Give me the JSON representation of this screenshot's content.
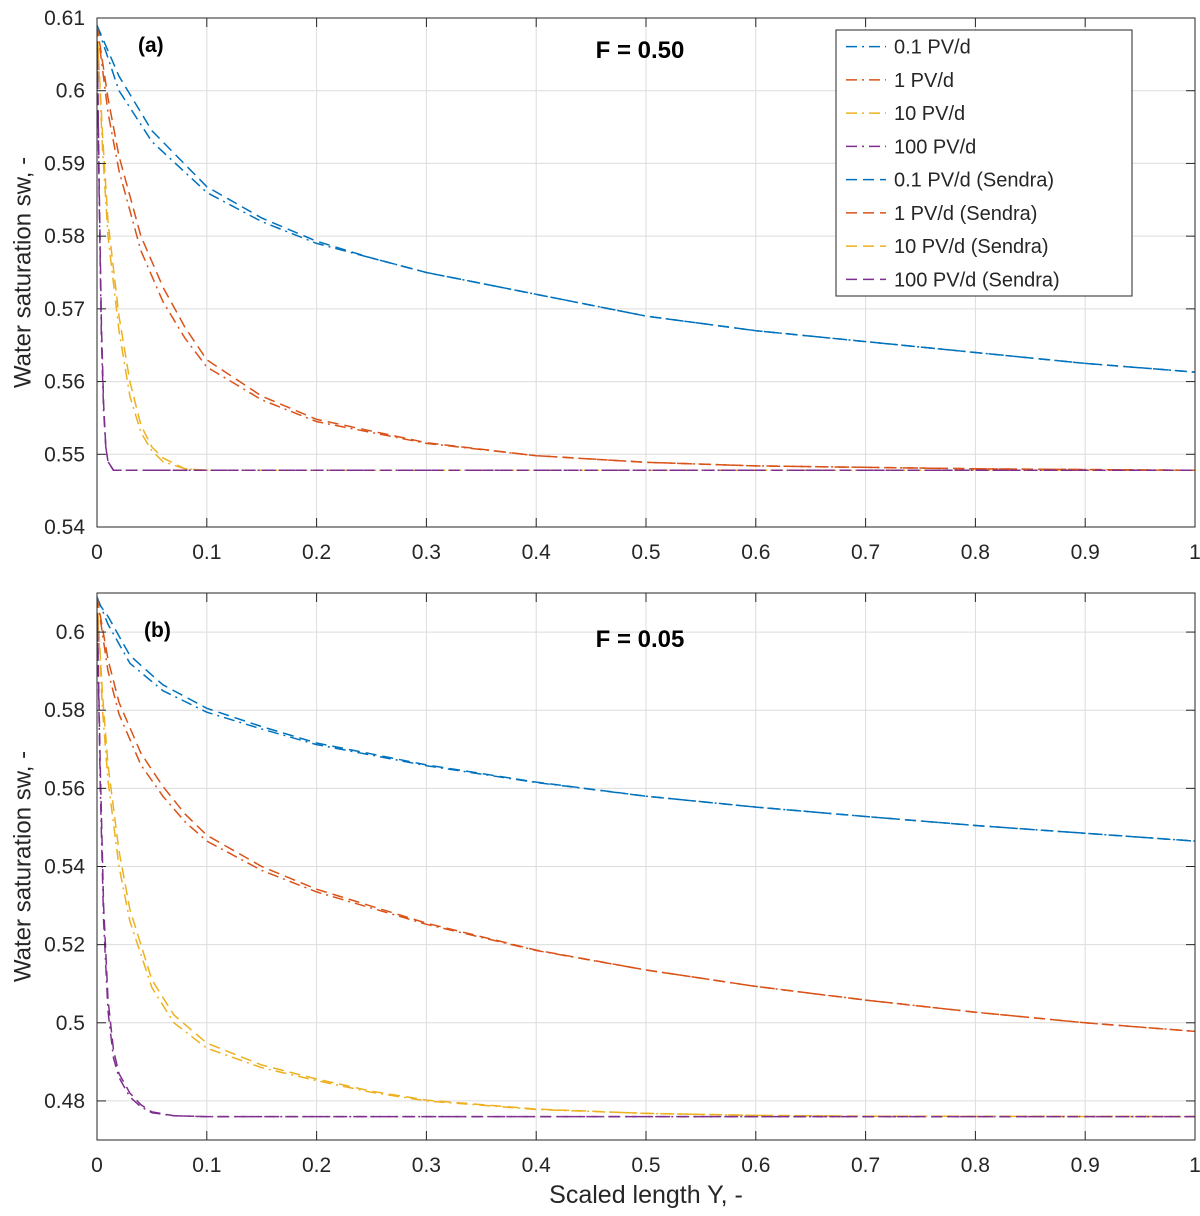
{
  "figure": {
    "xlabel": "Scaled length Y, -"
  },
  "colors": {
    "blue": "#0072BD",
    "orange": "#D95319",
    "yellow": "#EDB120",
    "purple": "#7E2F8E",
    "grid": "#dcdcdc",
    "axis": "#262626"
  },
  "chart_data": [
    {
      "type": "line",
      "panel_label": "(a)",
      "title": "F = 0.50",
      "xlabel": "",
      "ylabel": "Water saturation sw, -",
      "xlim": [
        0,
        1
      ],
      "ylim": [
        0.54,
        0.61
      ],
      "xticks": [
        0,
        0.1,
        0.2,
        0.3,
        0.4,
        0.5,
        0.6,
        0.7,
        0.8,
        0.9,
        1
      ],
      "xtick_labels": [
        "0",
        "0.1",
        "0.2",
        "0.3",
        "0.4",
        "0.5",
        "0.6",
        "0.7",
        "0.8",
        "0.9",
        "1"
      ],
      "yticks": [
        0.54,
        0.55,
        0.56,
        0.57,
        0.58,
        0.59,
        0.6,
        0.61
      ],
      "ytick_labels": [
        "0.54",
        "0.55",
        "0.56",
        "0.57",
        "0.58",
        "0.59",
        "0.6",
        "0.61"
      ],
      "grid": true,
      "legend_position": "top-right",
      "series": [
        {
          "name": "0.1 PV/d",
          "color": "#0072BD",
          "style": "dashdot",
          "x": [
            0,
            0.02,
            0.05,
            0.1,
            0.15,
            0.2,
            0.25,
            0.3,
            0.4,
            0.5,
            0.6,
            0.7,
            0.8,
            0.9,
            1.0
          ],
          "y": [
            0.609,
            0.6,
            0.593,
            0.586,
            0.582,
            0.579,
            0.577,
            0.575,
            0.572,
            0.569,
            0.567,
            0.5655,
            0.564,
            0.5625,
            0.5613
          ]
        },
        {
          "name": "1 PV/d",
          "color": "#D95319",
          "style": "dashdot",
          "x": [
            0,
            0.01,
            0.02,
            0.04,
            0.06,
            0.08,
            0.1,
            0.15,
            0.2,
            0.3,
            0.4,
            0.5,
            0.6,
            0.8,
            1.0
          ],
          "y": [
            0.609,
            0.597,
            0.589,
            0.578,
            0.571,
            0.566,
            0.562,
            0.5575,
            0.5545,
            0.5515,
            0.5498,
            0.5489,
            0.5484,
            0.548,
            0.5478
          ]
        },
        {
          "name": "10 PV/d",
          "color": "#EDB120",
          "style": "dashdot",
          "x": [
            0,
            0.005,
            0.01,
            0.02,
            0.03,
            0.04,
            0.05,
            0.06,
            0.08,
            0.1,
            1.0
          ],
          "y": [
            0.609,
            0.592,
            0.58,
            0.567,
            0.558,
            0.553,
            0.5505,
            0.549,
            0.548,
            0.5478,
            0.5478
          ]
        },
        {
          "name": "100 PV/d",
          "color": "#7E2F8E",
          "style": "dashdot",
          "x": [
            0,
            0.002,
            0.004,
            0.006,
            0.008,
            0.01,
            0.015,
            1.0
          ],
          "y": [
            0.609,
            0.585,
            0.566,
            0.556,
            0.551,
            0.549,
            0.5478,
            0.5478
          ]
        },
        {
          "name": "0.1 PV/d (Sendra)",
          "color": "#0072BD",
          "style": "dashed",
          "x": [
            0,
            0.02,
            0.05,
            0.1,
            0.15,
            0.2,
            0.25,
            0.3,
            0.4,
            0.5,
            0.6,
            0.7,
            0.8,
            0.9,
            1.0
          ],
          "y": [
            0.609,
            0.602,
            0.5945,
            0.5868,
            0.5825,
            0.5793,
            0.577,
            0.575,
            0.572,
            0.569,
            0.567,
            0.5655,
            0.564,
            0.5625,
            0.5613
          ]
        },
        {
          "name": "1 PV/d (Sendra)",
          "color": "#D95319",
          "style": "dashed",
          "x": [
            0,
            0.01,
            0.02,
            0.04,
            0.06,
            0.08,
            0.1,
            0.15,
            0.2,
            0.3,
            0.4,
            0.5,
            0.6,
            0.8,
            1.0
          ],
          "y": [
            0.609,
            0.599,
            0.591,
            0.58,
            0.573,
            0.5675,
            0.563,
            0.558,
            0.5548,
            0.5516,
            0.5498,
            0.5489,
            0.5484,
            0.548,
            0.5478
          ]
        },
        {
          "name": "10 PV/d (Sendra)",
          "color": "#EDB120",
          "style": "dashed",
          "x": [
            0,
            0.005,
            0.01,
            0.02,
            0.03,
            0.04,
            0.05,
            0.06,
            0.08,
            0.1,
            1.0
          ],
          "y": [
            0.609,
            0.594,
            0.582,
            0.569,
            0.56,
            0.554,
            0.551,
            0.5495,
            0.548,
            0.5478,
            0.5478
          ]
        },
        {
          "name": "100 PV/d (Sendra)",
          "color": "#7E2F8E",
          "style": "dashed",
          "x": [
            0,
            0.002,
            0.004,
            0.006,
            0.008,
            0.01,
            0.015,
            1.0
          ],
          "y": [
            0.609,
            0.587,
            0.568,
            0.557,
            0.551,
            0.549,
            0.5478,
            0.5478
          ]
        }
      ]
    },
    {
      "type": "line",
      "panel_label": "(b)",
      "title": "F = 0.05",
      "xlabel": "Scaled length Y, -",
      "ylabel": "Water saturation sw, -",
      "xlim": [
        0,
        1
      ],
      "ylim": [
        0.47,
        0.61
      ],
      "xticks": [
        0,
        0.1,
        0.2,
        0.3,
        0.4,
        0.5,
        0.6,
        0.7,
        0.8,
        0.9,
        1
      ],
      "xtick_labels": [
        "0",
        "0.1",
        "0.2",
        "0.3",
        "0.4",
        "0.5",
        "0.6",
        "0.7",
        "0.8",
        "0.9",
        "1"
      ],
      "yticks": [
        0.48,
        0.5,
        0.52,
        0.54,
        0.56,
        0.58,
        0.6
      ],
      "ytick_labels": [
        "0.48",
        "0.5",
        "0.52",
        "0.54",
        "0.56",
        "0.58",
        "0.6"
      ],
      "grid": true,
      "series": [
        {
          "name": "0.1 PV/d",
          "color": "#0072BD",
          "style": "dashdot",
          "x": [
            0,
            0.01,
            0.03,
            0.06,
            0.1,
            0.15,
            0.2,
            0.3,
            0.4,
            0.5,
            0.6,
            0.7,
            0.8,
            0.9,
            1.0
          ],
          "y": [
            0.609,
            0.602,
            0.592,
            0.585,
            0.5795,
            0.5752,
            0.5712,
            0.5658,
            0.5615,
            0.558,
            0.5552,
            0.5528,
            0.5505,
            0.5485,
            0.5465
          ]
        },
        {
          "name": "1 PV/d",
          "color": "#D95319",
          "style": "dashdot",
          "x": [
            0,
            0.01,
            0.02,
            0.04,
            0.06,
            0.08,
            0.1,
            0.15,
            0.2,
            0.3,
            0.4,
            0.5,
            0.6,
            0.7,
            0.8,
            0.9,
            1.0
          ],
          "y": [
            0.609,
            0.59,
            0.579,
            0.566,
            0.558,
            0.5515,
            0.5465,
            0.539,
            0.5335,
            0.5252,
            0.5185,
            0.5135,
            0.5093,
            0.5058,
            0.5027,
            0.5,
            0.4978
          ]
        },
        {
          "name": "10 PV/d",
          "color": "#EDB120",
          "style": "dashdot",
          "x": [
            0,
            0.005,
            0.01,
            0.02,
            0.03,
            0.05,
            0.07,
            0.1,
            0.15,
            0.2,
            0.25,
            0.3,
            0.4,
            0.5,
            0.6,
            0.7,
            1.0
          ],
          "y": [
            0.609,
            0.58,
            0.562,
            0.54,
            0.526,
            0.509,
            0.5,
            0.4935,
            0.4885,
            0.4852,
            0.4822,
            0.48,
            0.4778,
            0.4768,
            0.4763,
            0.4761,
            0.476
          ]
        },
        {
          "name": "100 PV/d",
          "color": "#7E2F8E",
          "style": "dashdot",
          "x": [
            0,
            0.003,
            0.006,
            0.01,
            0.015,
            0.02,
            0.03,
            0.04,
            0.05,
            0.07,
            0.1,
            1.0
          ],
          "y": [
            0.609,
            0.56,
            0.526,
            0.503,
            0.491,
            0.486,
            0.481,
            0.4785,
            0.477,
            0.4762,
            0.476,
            0.476
          ]
        },
        {
          "name": "0.1 PV/d (Sendra)",
          "color": "#0072BD",
          "style": "dashed",
          "x": [
            0,
            0.01,
            0.03,
            0.06,
            0.1,
            0.15,
            0.2,
            0.3,
            0.4,
            0.5,
            0.6,
            0.7,
            0.8,
            0.9,
            1.0
          ],
          "y": [
            0.608,
            0.604,
            0.594,
            0.5865,
            0.5805,
            0.5758,
            0.5716,
            0.566,
            0.5616,
            0.558,
            0.5552,
            0.5528,
            0.5505,
            0.5485,
            0.5465
          ]
        },
        {
          "name": "1 PV/d (Sendra)",
          "color": "#D95319",
          "style": "dashed",
          "x": [
            0,
            0.01,
            0.02,
            0.04,
            0.06,
            0.08,
            0.1,
            0.15,
            0.2,
            0.3,
            0.4,
            0.5,
            0.6,
            0.7,
            0.8,
            0.9,
            1.0
          ],
          "y": [
            0.609,
            0.593,
            0.582,
            0.569,
            0.5605,
            0.5535,
            0.548,
            0.54,
            0.5342,
            0.5255,
            0.5186,
            0.5135,
            0.5093,
            0.5058,
            0.5027,
            0.5,
            0.4978
          ]
        },
        {
          "name": "10 PV/d (Sendra)",
          "color": "#EDB120",
          "style": "dashed",
          "x": [
            0,
            0.005,
            0.01,
            0.02,
            0.03,
            0.05,
            0.07,
            0.1,
            0.15,
            0.2,
            0.25,
            0.3,
            0.4,
            0.5,
            0.6,
            0.7,
            1.0
          ],
          "y": [
            0.609,
            0.584,
            0.566,
            0.544,
            0.529,
            0.511,
            0.502,
            0.4948,
            0.4892,
            0.4856,
            0.4825,
            0.4802,
            0.4779,
            0.4768,
            0.4763,
            0.4761,
            0.476
          ]
        },
        {
          "name": "100 PV/d (Sendra)",
          "color": "#7E2F8E",
          "style": "dashed",
          "x": [
            0,
            0.003,
            0.006,
            0.01,
            0.015,
            0.02,
            0.03,
            0.04,
            0.05,
            0.07,
            0.1,
            1.0
          ],
          "y": [
            0.609,
            0.565,
            0.53,
            0.506,
            0.493,
            0.487,
            0.482,
            0.479,
            0.4772,
            0.4762,
            0.476,
            0.476
          ]
        }
      ]
    }
  ]
}
